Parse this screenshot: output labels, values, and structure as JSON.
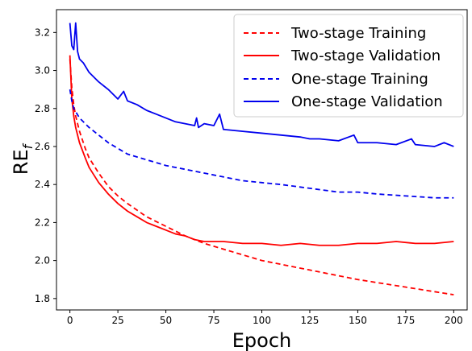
{
  "chart_data": {
    "type": "line",
    "xlabel": "Epoch",
    "ylabel_main": "RE",
    "ylabel_sub": "f",
    "xlim": [
      -7,
      207
    ],
    "ylim": [
      1.74,
      3.32
    ],
    "xticks": [
      0,
      25,
      50,
      75,
      100,
      125,
      150,
      175,
      200
    ],
    "yticks": [
      1.8,
      2.0,
      2.2,
      2.4,
      2.6,
      2.8,
      3.0,
      3.2
    ],
    "xtick_labels": [
      "0",
      "25",
      "50",
      "75",
      "100",
      "125",
      "150",
      "175",
      "200"
    ],
    "ytick_labels": [
      "1.8",
      "2.0",
      "2.2",
      "2.4",
      "2.6",
      "2.8",
      "3.0",
      "3.2"
    ],
    "grid": false,
    "legend_position": "top-right",
    "series": [
      {
        "name": "Two-stage Training",
        "color": "#ff0000",
        "dash": "dashed",
        "x": [
          0,
          1,
          2,
          3,
          5,
          8,
          10,
          15,
          20,
          25,
          30,
          40,
          50,
          60,
          70,
          80,
          100,
          125,
          150,
          175,
          200
        ],
        "y": [
          3.06,
          2.91,
          2.82,
          2.76,
          2.68,
          2.59,
          2.54,
          2.46,
          2.39,
          2.34,
          2.3,
          2.23,
          2.18,
          2.13,
          2.09,
          2.06,
          2.0,
          1.95,
          1.9,
          1.86,
          1.82
        ]
      },
      {
        "name": "Two-stage Validation",
        "color": "#ff0000",
        "dash": "solid",
        "x": [
          0,
          1,
          2,
          3,
          5,
          8,
          10,
          15,
          20,
          25,
          30,
          35,
          40,
          45,
          50,
          55,
          60,
          65,
          70,
          75,
          80,
          90,
          100,
          110,
          120,
          130,
          140,
          150,
          160,
          170,
          180,
          190,
          200
        ],
        "y": [
          3.08,
          2.85,
          2.76,
          2.7,
          2.62,
          2.54,
          2.49,
          2.41,
          2.35,
          2.3,
          2.26,
          2.23,
          2.2,
          2.18,
          2.16,
          2.14,
          2.13,
          2.11,
          2.1,
          2.1,
          2.1,
          2.09,
          2.09,
          2.08,
          2.09,
          2.08,
          2.08,
          2.09,
          2.09,
          2.1,
          2.09,
          2.09,
          2.1
        ]
      },
      {
        "name": "One-stage Training",
        "color": "#0000ee",
        "dash": "dashed",
        "x": [
          0,
          1,
          2,
          5,
          10,
          15,
          20,
          25,
          30,
          40,
          50,
          60,
          70,
          80,
          90,
          100,
          110,
          125,
          140,
          150,
          160,
          175,
          190,
          200
        ],
        "y": [
          2.9,
          2.84,
          2.8,
          2.75,
          2.7,
          2.66,
          2.62,
          2.59,
          2.56,
          2.53,
          2.5,
          2.48,
          2.46,
          2.44,
          2.42,
          2.41,
          2.4,
          2.38,
          2.36,
          2.36,
          2.35,
          2.34,
          2.33,
          2.33
        ]
      },
      {
        "name": "One-stage Validation",
        "color": "#0000ee",
        "dash": "solid",
        "x": [
          0,
          1,
          2,
          3,
          4,
          5,
          7,
          10,
          15,
          20,
          25,
          28,
          30,
          35,
          40,
          45,
          50,
          55,
          60,
          65,
          66,
          67,
          70,
          75,
          78,
          80,
          90,
          100,
          110,
          120,
          125,
          130,
          140,
          148,
          150,
          160,
          170,
          178,
          180,
          190,
          195,
          200
        ],
        "y": [
          3.25,
          3.13,
          3.11,
          3.25,
          3.1,
          3.06,
          3.04,
          2.99,
          2.94,
          2.9,
          2.85,
          2.89,
          2.84,
          2.82,
          2.79,
          2.77,
          2.75,
          2.73,
          2.72,
          2.71,
          2.75,
          2.7,
          2.72,
          2.71,
          2.77,
          2.69,
          2.68,
          2.67,
          2.66,
          2.65,
          2.64,
          2.64,
          2.63,
          2.66,
          2.62,
          2.62,
          2.61,
          2.64,
          2.61,
          2.6,
          2.62,
          2.6
        ]
      }
    ]
  }
}
